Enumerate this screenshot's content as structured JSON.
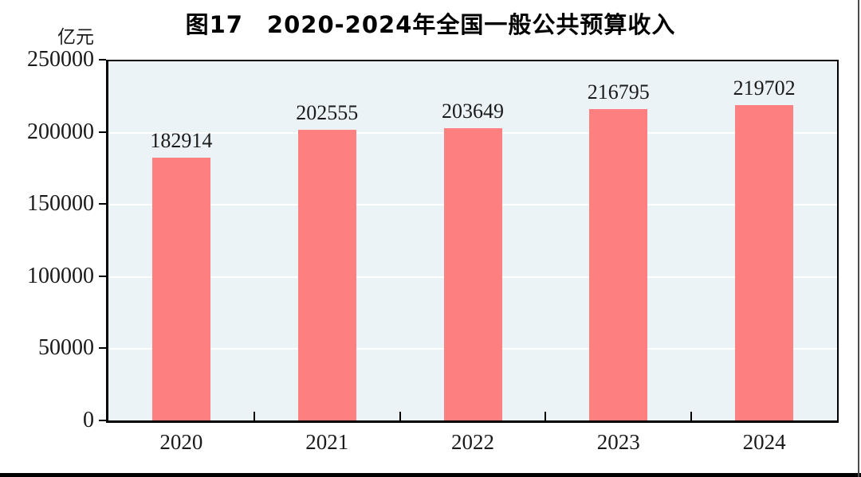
{
  "page": {
    "title": "图17　2020-2024年全国一般公共预算收入",
    "unit_label": "亿元"
  },
  "chart_data": {
    "type": "bar",
    "title": "图17　2020-2024年全国一般公共预算收入",
    "unit": "亿元",
    "categories": [
      "2020",
      "2021",
      "2022",
      "2023",
      "2024"
    ],
    "values": [
      182914,
      202555,
      203649,
      216795,
      219702
    ],
    "ylim": [
      0,
      250000
    ],
    "yticks": [
      0,
      50000,
      100000,
      150000,
      200000,
      250000
    ],
    "grid": true,
    "legend": "none",
    "data_labels": true,
    "colors": {
      "bar": "#FD7F7F",
      "plot_background": "#ECF3F7",
      "gridline": "#FFFFFF",
      "axis": "#000000",
      "text": "#1A1A1A"
    }
  }
}
